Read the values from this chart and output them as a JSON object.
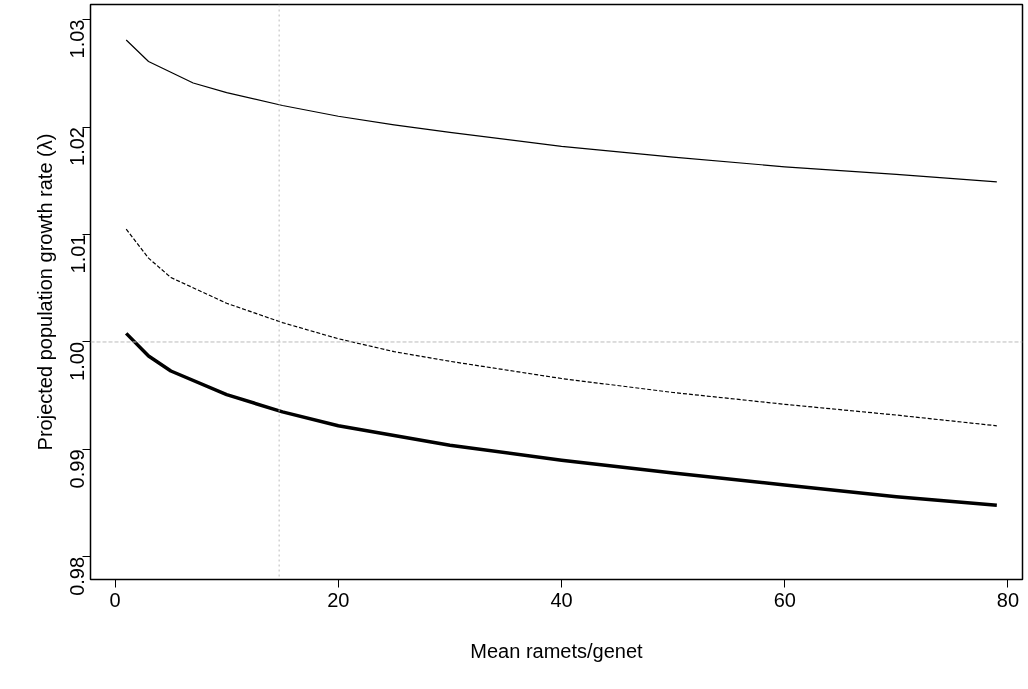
{
  "chart_data": {
    "type": "line",
    "xlabel": "Mean ramets/genet",
    "ylabel": "Projected population growth rate (λ)",
    "xlim": [
      -2.2,
      81.3
    ],
    "ylim": [
      0.9779,
      1.0314
    ],
    "xticks": [
      0,
      20,
      40,
      60,
      80
    ],
    "yticks": [
      0.98,
      0.99,
      {
        "value": 1.0,
        "label": "1.00"
      },
      1.01,
      1.02,
      1.03
    ],
    "grid": false,
    "marker": "none",
    "series": [
      {
        "color": "#000000",
        "line_style": "solid",
        "x": [
          1,
          3,
          7,
          10,
          15,
          20,
          25,
          30,
          40,
          50,
          60,
          70,
          79
        ],
        "values": [
          1.0281,
          1.0261,
          1.0241,
          1.0232,
          1.022,
          1.021,
          1.0202,
          1.0195,
          1.0182,
          1.0172,
          1.0163,
          1.0156,
          1.0149
        ]
      },
      {
        "color": "#000000",
        "line_style": "dashed",
        "x": [
          1,
          3,
          5,
          10,
          15,
          20,
          25,
          30,
          40,
          50,
          60,
          70,
          79
        ],
        "values": [
          1.0105,
          1.0078,
          1.006,
          1.0036,
          1.0018,
          1.0003,
          0.9991,
          0.9982,
          0.9966,
          0.9953,
          0.9942,
          0.9932,
          0.9922
        ]
      },
      {
        "color": "#000000",
        "line_style": "solid",
        "x": [
          1,
          3,
          5,
          10,
          15,
          20,
          30,
          40,
          50,
          60,
          70,
          79
        ],
        "values": [
          1.0008,
          0.9987,
          0.9973,
          0.9951,
          0.9935,
          0.9922,
          0.9904,
          0.989,
          0.9878,
          0.9867,
          0.9856,
          0.9848
        ]
      }
    ],
    "ref_lines": [
      {
        "axis": "y",
        "value": 1.0,
        "color": "#bbbbbb",
        "line_style": "dashed"
      },
      {
        "axis": "x",
        "value": 14.7,
        "color": "#bbbbbb",
        "line_style": "dotted"
      }
    ]
  }
}
